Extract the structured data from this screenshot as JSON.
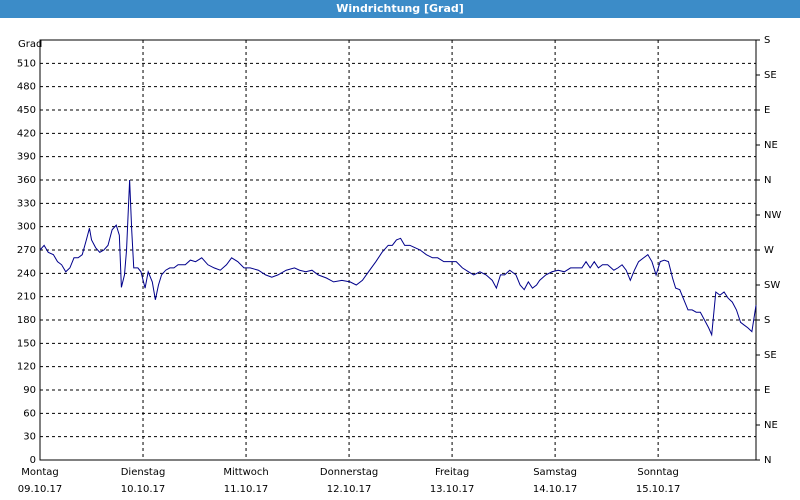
{
  "chart_data": {
    "type": "line",
    "title": "Windrichtung [Grad]",
    "ylabel": "Grad",
    "xlim": [
      0,
      6.95
    ],
    "xticks": [
      {
        "value": 0,
        "label": "Montag",
        "date": "09.10.17"
      },
      {
        "value": 1,
        "label": "Dienstag",
        "date": "10.10.17"
      },
      {
        "value": 2,
        "label": "Mittwoch",
        "date": "11.10.17"
      },
      {
        "value": 3,
        "label": "Donnerstag",
        "date": "12.10.17"
      },
      {
        "value": 4,
        "label": "Freitag",
        "date": "13.10.17"
      },
      {
        "value": 5,
        "label": "Samstag",
        "date": "14.10.17"
      },
      {
        "value": 6,
        "label": "Sonntag",
        "date": "15.10.17"
      }
    ],
    "ylim": [
      0,
      540
    ],
    "yticks": [
      0,
      30,
      60,
      90,
      120,
      150,
      180,
      210,
      240,
      270,
      300,
      330,
      360,
      390,
      420,
      450,
      480,
      510
    ],
    "y2lim": [
      0,
      540
    ],
    "y2ticks": [
      {
        "value": 0,
        "label": "N"
      },
      {
        "value": 45,
        "label": "NE"
      },
      {
        "value": 90,
        "label": "E"
      },
      {
        "value": 135,
        "label": "SE"
      },
      {
        "value": 180,
        "label": "S"
      },
      {
        "value": 225,
        "label": "SW"
      },
      {
        "value": 270,
        "label": "W"
      },
      {
        "value": 315,
        "label": "NW"
      },
      {
        "value": 360,
        "label": "N"
      },
      {
        "value": 405,
        "label": "NE"
      },
      {
        "value": 450,
        "label": "E"
      },
      {
        "value": 495,
        "label": "SE"
      },
      {
        "value": 540,
        "label": "S"
      }
    ],
    "grid": true,
    "series": [
      {
        "color": "#00008b",
        "x": [
          0,
          0.04,
          0.08,
          0.13,
          0.17,
          0.21,
          0.25,
          0.29,
          0.33,
          0.37,
          0.41,
          0.45,
          0.48,
          0.5,
          0.54,
          0.58,
          0.62,
          0.66,
          0.7,
          0.74,
          0.77,
          0.79,
          0.82,
          0.84,
          0.87,
          0.89,
          0.91,
          0.95,
          0.98,
          1.02,
          1.05,
          1.09,
          1.12,
          1.15,
          1.18,
          1.22,
          1.26,
          1.3,
          1.34,
          1.41,
          1.46,
          1.51,
          1.57,
          1.63,
          1.69,
          1.75,
          1.81,
          1.86,
          1.92,
          1.98,
          2.04,
          2.12,
          2.19,
          2.25,
          2.31,
          2.39,
          2.47,
          2.52,
          2.58,
          2.64,
          2.7,
          2.78,
          2.85,
          2.93,
          3.01,
          3.07,
          3.13,
          3.2,
          3.26,
          3.32,
          3.38,
          3.42,
          3.46,
          3.5,
          3.54,
          3.59,
          3.64,
          3.69,
          3.75,
          3.81,
          3.86,
          3.92,
          3.98,
          4.04,
          4.1,
          4.16,
          4.21,
          4.27,
          4.33,
          4.39,
          4.43,
          4.47,
          4.51,
          4.56,
          4.62,
          4.66,
          4.7,
          4.74,
          4.78,
          4.82,
          4.85,
          4.91,
          4.97,
          5.03,
          5.09,
          5.15,
          5.2,
          5.26,
          5.3,
          5.34,
          5.38,
          5.42,
          5.46,
          5.51,
          5.57,
          5.61,
          5.65,
          5.69,
          5.73,
          5.77,
          5.81,
          5.86,
          5.9,
          5.94,
          5.98,
          6.02,
          6.06,
          6.1,
          6.14,
          6.17,
          6.21,
          6.25,
          6.29,
          6.33,
          6.37,
          6.41,
          6.45,
          6.49,
          6.52,
          6.56,
          6.6,
          6.64,
          6.68,
          6.72,
          6.76,
          6.8,
          6.83,
          6.87,
          6.91,
          6.95
        ],
        "values": [
          270,
          276,
          267,
          264,
          255,
          251,
          242,
          247,
          260,
          260,
          264,
          283,
          298,
          283,
          273,
          267,
          270,
          276,
          296,
          302,
          289,
          222,
          238,
          270,
          360,
          296,
          247,
          247,
          242,
          221,
          242,
          229,
          206,
          225,
          238,
          244,
          247,
          247,
          251,
          251,
          257,
          255,
          260,
          251,
          247,
          244,
          251,
          260,
          255,
          247,
          247,
          244,
          238,
          235,
          238,
          244,
          247,
          244,
          242,
          244,
          238,
          234,
          229,
          231,
          229,
          225,
          231,
          244,
          255,
          267,
          276,
          276,
          283,
          285,
          276,
          276,
          273,
          270,
          264,
          260,
          260,
          255,
          255,
          255,
          247,
          242,
          238,
          242,
          238,
          231,
          221,
          238,
          238,
          244,
          238,
          225,
          219,
          229,
          221,
          225,
          231,
          238,
          242,
          244,
          242,
          247,
          247,
          247,
          255,
          247,
          255,
          247,
          251,
          251,
          244,
          247,
          251,
          244,
          231,
          244,
          255,
          260,
          264,
          255,
          238,
          255,
          257,
          255,
          234,
          221,
          219,
          206,
          193,
          193,
          190,
          190,
          180,
          170,
          161,
          216,
          212,
          216,
          208,
          203,
          193,
          177,
          174,
          170,
          165,
          199
        ]
      }
    ]
  }
}
